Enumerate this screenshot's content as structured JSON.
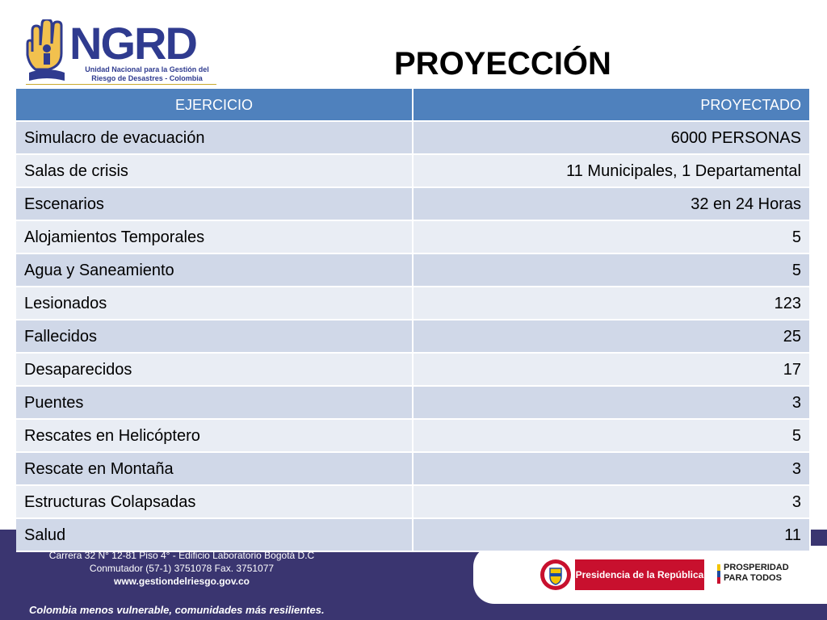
{
  "header": {
    "logo_text": "NGRD",
    "logo_subtitle": "Unidad Nacional para la Gestión del Riesgo de Desastres - Colombia",
    "title": "PROYECCIÓN"
  },
  "table": {
    "columns": [
      "EJERCICIO",
      "PROYECTADO"
    ],
    "rows": [
      [
        "Simulacro de evacuación",
        "6000 PERSONAS"
      ],
      [
        "Salas de crisis",
        "11 Municipales, 1 Departamental"
      ],
      [
        "Escenarios",
        "32 en  24 Horas"
      ],
      [
        "Alojamientos Temporales",
        "5"
      ],
      [
        "Agua y Saneamiento",
        "5"
      ],
      [
        "Lesionados",
        "123"
      ],
      [
        "Fallecidos",
        "25"
      ],
      [
        "Desaparecidos",
        "17"
      ],
      [
        "Puentes",
        "3"
      ],
      [
        "Rescates en Helicóptero",
        "5"
      ],
      [
        "Rescate en Montaña",
        "3"
      ],
      [
        "Estructuras Colapsadas",
        "3"
      ],
      [
        "Salud",
        "11"
      ]
    ]
  },
  "footer": {
    "address_line1": "Carrera 32 N° 12-81 Piso 4° - Edificio Laboratorio Bogotá D.C",
    "address_line2": "Conmutador (57-1) 3751078 Fax. 3751077",
    "website": "www.gestiondelriesgo.gov.co",
    "tagline": "Colombia menos vulnerable, comunidades más resilientes.",
    "presidencia": "Presidencia de la República",
    "prosperidad": "PROSPERIDAD PARA TODOS"
  },
  "colors": {
    "table_header": "#4f81bd",
    "row_odd": "#d0d8e8",
    "row_even": "#e9edf4",
    "footer_bg": "#3a3570",
    "brand_blue": "#2f3b8f",
    "presidencia_red": "#c8102e"
  },
  "icons": [
    "ngrd-hand-logo",
    "colombia-crest",
    "prosperidad-stripes"
  ]
}
